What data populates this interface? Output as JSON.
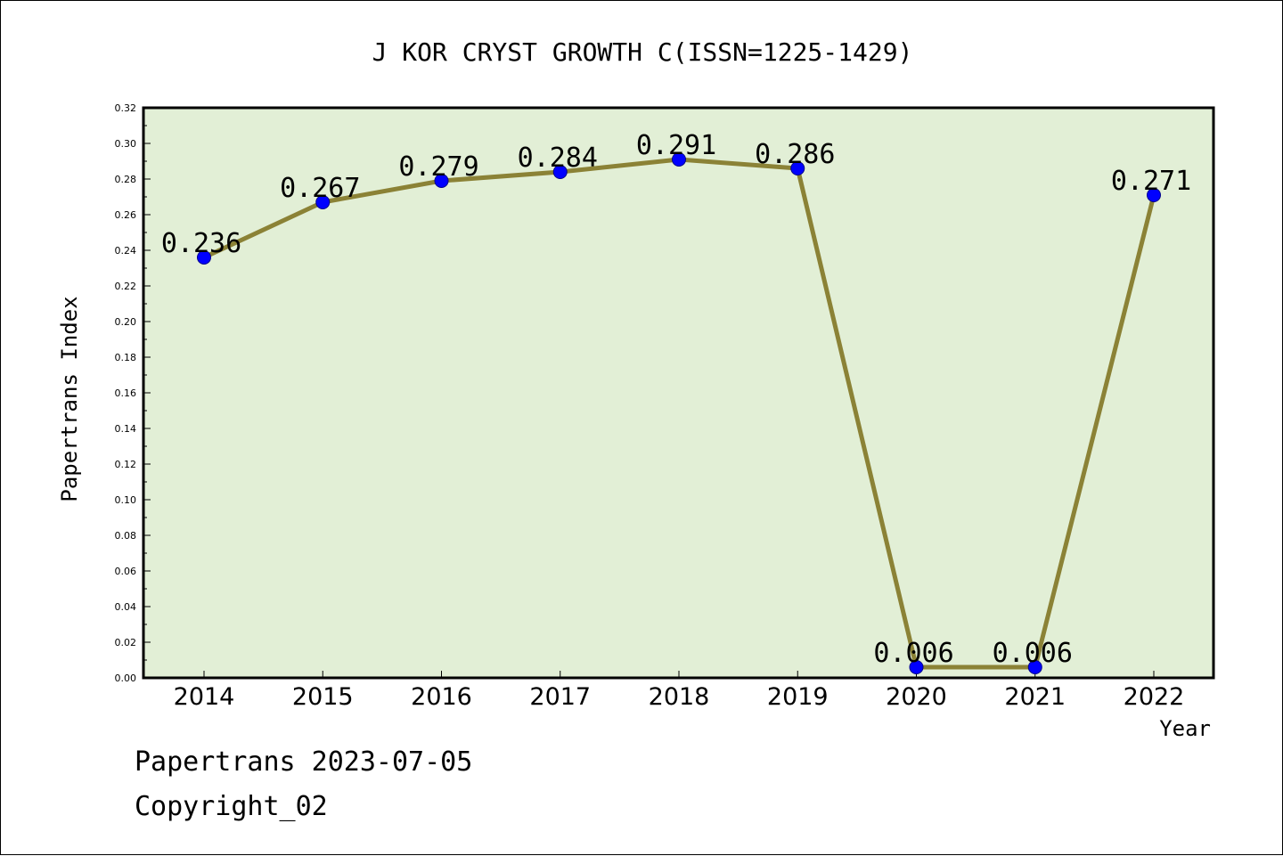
{
  "chart_data": {
    "type": "line",
    "title": "J KOR CRYST GROWTH C(ISSN=1225-1429)",
    "xlabel": "Year",
    "ylabel": "Papertrans Index",
    "categories": [
      "2014",
      "2015",
      "2016",
      "2017",
      "2018",
      "2019",
      "2020",
      "2021",
      "2022"
    ],
    "values": [
      0.236,
      0.267,
      0.279,
      0.284,
      0.291,
      0.286,
      0.006,
      0.006,
      0.271
    ],
    "value_labels": [
      "0.236",
      "0.267",
      "0.279",
      "0.284",
      "0.291",
      "0.286",
      "0.006",
      "0.006",
      "0.271"
    ],
    "ylim": [
      0,
      0.32
    ],
    "yticks": [
      "0.00",
      "0.02",
      "0.04",
      "0.06",
      "0.08",
      "0.10",
      "0.12",
      "0.14",
      "0.16",
      "0.18",
      "0.20",
      "0.22",
      "0.24",
      "0.26",
      "0.28",
      "0.30",
      "0.32"
    ],
    "grid": false,
    "colors": {
      "plot_background": "#e2efd6",
      "line": "#8b8236",
      "marker": "#0000ff"
    }
  },
  "footer": {
    "date_line": "Papertrans 2023-07-05",
    "copyright": "Copyright_02"
  }
}
